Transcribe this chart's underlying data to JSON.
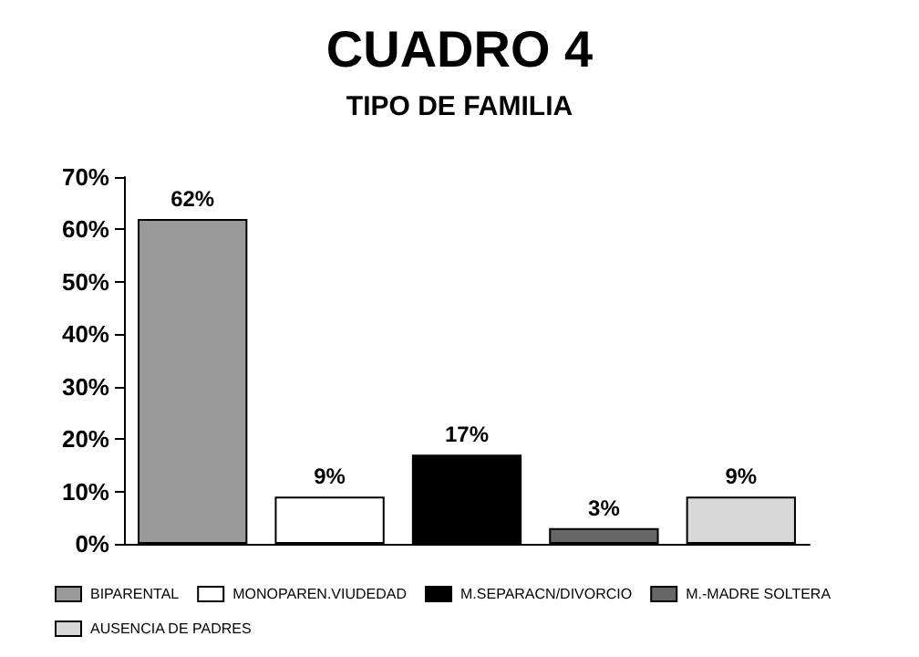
{
  "chart_data": {
    "type": "bar",
    "title": "CUADRO 4",
    "subtitle": "TIPO DE FAMILIA",
    "categories": [
      null,
      null,
      null,
      null,
      null
    ],
    "series": [
      {
        "name": "BIPARENTAL",
        "color": "#9a9a9a",
        "values": [
          62,
          null,
          null,
          null,
          null
        ],
        "value_labels": [
          "62%",
          null,
          null,
          null,
          null
        ]
      },
      {
        "name": "MONOPAREN.VIUDEDAD",
        "color": "#ffffff",
        "values": [
          null,
          9,
          null,
          null,
          null
        ],
        "value_labels": [
          null,
          "9%",
          null,
          null,
          null
        ]
      },
      {
        "name": "M.SEPARACN/DIVORCIO",
        "color": "#000000",
        "values": [
          null,
          null,
          17,
          null,
          null
        ],
        "value_labels": [
          null,
          null,
          "17%",
          null,
          null
        ]
      },
      {
        "name": "M.-MADRE SOLTERA",
        "color": "#666666",
        "values": [
          null,
          null,
          null,
          3,
          null
        ],
        "value_labels": [
          null,
          null,
          null,
          "3%",
          null
        ]
      },
      {
        "name": "AUSENCIA DE PADRES",
        "color": "#d8d8d8",
        "values": [
          null,
          null,
          null,
          null,
          9
        ],
        "value_labels": [
          null,
          null,
          null,
          null,
          "9%"
        ]
      }
    ],
    "ylim": [
      0,
      70
    ],
    "yticks": [
      {
        "value": 0,
        "label": "0%"
      },
      {
        "value": 10,
        "label": "10%"
      },
      {
        "value": 20,
        "label": "20%"
      },
      {
        "value": 30,
        "label": "30%"
      },
      {
        "value": 40,
        "label": "40%"
      },
      {
        "value": 50,
        "label": "50%"
      },
      {
        "value": 60,
        "label": "60%"
      },
      {
        "value": 70,
        "label": "70%"
      }
    ],
    "grid": false,
    "legend": "bottom"
  }
}
